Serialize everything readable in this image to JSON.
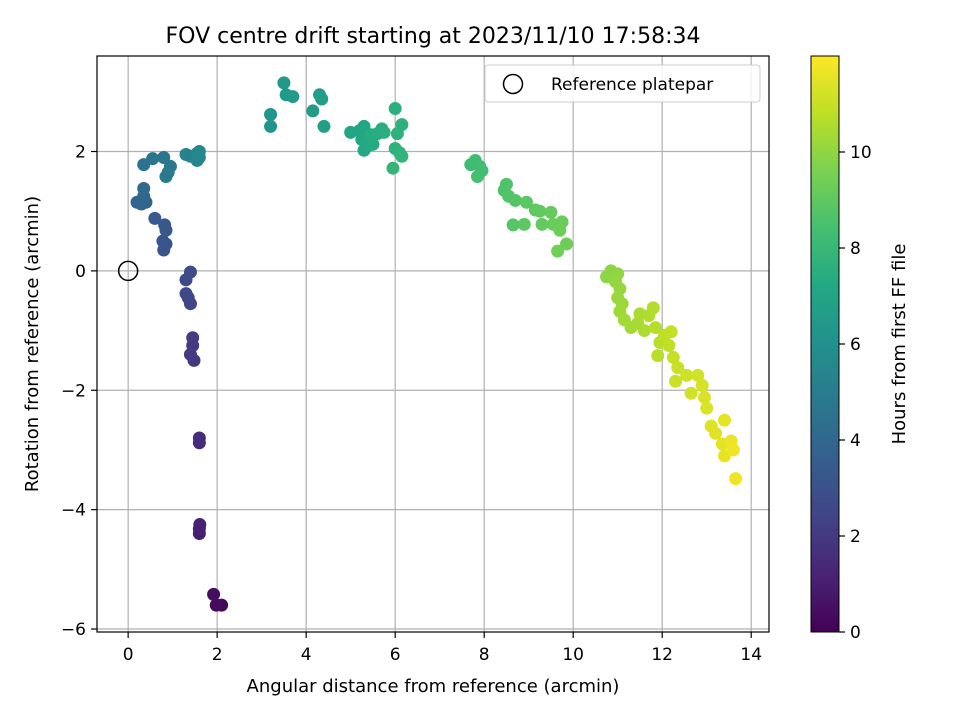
{
  "chart_data": {
    "type": "scatter",
    "title": "FOV centre drift starting at 2023/11/10 17:58:34",
    "xlabel": "Angular distance from reference (arcmin)",
    "ylabel": "Rotation from reference (arcmin)",
    "colorbar_label": "Hours from first FF file",
    "xlim": [
      -0.7,
      14.4
    ],
    "ylim": [
      -6.05,
      3.6
    ],
    "xticks": [
      0,
      2,
      4,
      6,
      8,
      10,
      12,
      14
    ],
    "yticks": [
      -6,
      -4,
      -2,
      0,
      2
    ],
    "colorbar_ticks": [
      0,
      2,
      4,
      6,
      8,
      10
    ],
    "colorbar_range": [
      0,
      12
    ],
    "colormap": "viridis",
    "grid": true,
    "legend": {
      "location": "top-right",
      "entries": [
        "Reference platepar"
      ]
    },
    "reference_point": {
      "x": 0,
      "y": 0
    },
    "points": [
      {
        "x": 2.1,
        "y": -5.6,
        "t": 0.2
      },
      {
        "x": 1.98,
        "y": -5.6,
        "t": 0.3
      },
      {
        "x": 1.92,
        "y": -5.42,
        "t": 0.45
      },
      {
        "x": 1.6,
        "y": -4.4,
        "t": 1.0
      },
      {
        "x": 1.6,
        "y": -4.32,
        "t": 1.05
      },
      {
        "x": 1.61,
        "y": -4.25,
        "t": 1.1
      },
      {
        "x": 1.6,
        "y": -2.88,
        "t": 1.5
      },
      {
        "x": 1.6,
        "y": -2.8,
        "t": 1.55
      },
      {
        "x": 1.48,
        "y": -1.5,
        "t": 2.0
      },
      {
        "x": 1.4,
        "y": -1.4,
        "t": 2.05
      },
      {
        "x": 1.45,
        "y": -1.25,
        "t": 2.1
      },
      {
        "x": 1.45,
        "y": -1.12,
        "t": 2.15
      },
      {
        "x": 1.4,
        "y": -0.55,
        "t": 2.5
      },
      {
        "x": 1.35,
        "y": -0.45,
        "t": 2.55
      },
      {
        "x": 1.3,
        "y": -0.38,
        "t": 2.6
      },
      {
        "x": 1.3,
        "y": -0.15,
        "t": 2.7
      },
      {
        "x": 1.4,
        "y": -0.02,
        "t": 2.75
      },
      {
        "x": 0.8,
        "y": 0.35,
        "t": 3.0
      },
      {
        "x": 0.85,
        "y": 0.45,
        "t": 3.1
      },
      {
        "x": 0.78,
        "y": 0.5,
        "t": 3.15
      },
      {
        "x": 0.85,
        "y": 0.68,
        "t": 3.25
      },
      {
        "x": 0.82,
        "y": 0.77,
        "t": 3.3
      },
      {
        "x": 0.6,
        "y": 0.88,
        "t": 3.4
      },
      {
        "x": 0.4,
        "y": 1.15,
        "t": 3.8
      },
      {
        "x": 0.3,
        "y": 1.12,
        "t": 3.85
      },
      {
        "x": 0.2,
        "y": 1.15,
        "t": 3.9
      },
      {
        "x": 0.35,
        "y": 1.25,
        "t": 4.0
      },
      {
        "x": 0.35,
        "y": 1.38,
        "t": 4.1
      },
      {
        "x": 0.35,
        "y": 1.78,
        "t": 4.5
      },
      {
        "x": 0.55,
        "y": 1.88,
        "t": 4.6
      },
      {
        "x": 0.8,
        "y": 1.9,
        "t": 4.7
      },
      {
        "x": 0.95,
        "y": 1.75,
        "t": 4.8
      },
      {
        "x": 0.9,
        "y": 1.65,
        "t": 4.85
      },
      {
        "x": 0.85,
        "y": 1.58,
        "t": 4.9
      },
      {
        "x": 1.3,
        "y": 1.95,
        "t": 5.3
      },
      {
        "x": 1.4,
        "y": 1.92,
        "t": 5.35
      },
      {
        "x": 1.55,
        "y": 1.97,
        "t": 5.4
      },
      {
        "x": 1.6,
        "y": 1.9,
        "t": 5.45
      },
      {
        "x": 1.55,
        "y": 1.85,
        "t": 5.5
      },
      {
        "x": 1.6,
        "y": 2.0,
        "t": 5.55
      },
      {
        "x": 3.2,
        "y": 2.42,
        "t": 6.2
      },
      {
        "x": 3.2,
        "y": 2.62,
        "t": 6.25
      },
      {
        "x": 3.5,
        "y": 3.15,
        "t": 6.35
      },
      {
        "x": 3.55,
        "y": 2.95,
        "t": 6.4
      },
      {
        "x": 3.7,
        "y": 2.92,
        "t": 6.45
      },
      {
        "x": 4.15,
        "y": 2.68,
        "t": 6.6
      },
      {
        "x": 4.3,
        "y": 2.95,
        "t": 6.65
      },
      {
        "x": 4.35,
        "y": 2.88,
        "t": 6.7
      },
      {
        "x": 4.4,
        "y": 2.42,
        "t": 6.75
      },
      {
        "x": 5.0,
        "y": 2.32,
        "t": 7.0
      },
      {
        "x": 5.2,
        "y": 2.35,
        "t": 7.05
      },
      {
        "x": 5.3,
        "y": 2.42,
        "t": 7.1
      },
      {
        "x": 5.25,
        "y": 2.2,
        "t": 7.15
      },
      {
        "x": 5.3,
        "y": 2.02,
        "t": 7.2
      },
      {
        "x": 5.4,
        "y": 2.1,
        "t": 7.25
      },
      {
        "x": 5.5,
        "y": 2.12,
        "t": 7.3
      },
      {
        "x": 5.45,
        "y": 2.28,
        "t": 7.35
      },
      {
        "x": 5.6,
        "y": 2.3,
        "t": 7.4
      },
      {
        "x": 5.7,
        "y": 2.38,
        "t": 7.45
      },
      {
        "x": 5.75,
        "y": 2.32,
        "t": 7.5
      },
      {
        "x": 6.0,
        "y": 2.72,
        "t": 7.55
      },
      {
        "x": 6.15,
        "y": 2.45,
        "t": 7.6
      },
      {
        "x": 6.05,
        "y": 2.3,
        "t": 7.65
      },
      {
        "x": 6.0,
        "y": 2.05,
        "t": 7.7
      },
      {
        "x": 6.1,
        "y": 1.98,
        "t": 7.75
      },
      {
        "x": 6.15,
        "y": 1.92,
        "t": 7.8
      },
      {
        "x": 5.95,
        "y": 1.72,
        "t": 7.85
      },
      {
        "x": 7.7,
        "y": 1.78,
        "t": 8.2
      },
      {
        "x": 7.8,
        "y": 1.85,
        "t": 8.25
      },
      {
        "x": 7.9,
        "y": 1.75,
        "t": 8.3
      },
      {
        "x": 7.95,
        "y": 1.68,
        "t": 8.35
      },
      {
        "x": 7.85,
        "y": 1.58,
        "t": 8.4
      },
      {
        "x": 8.45,
        "y": 1.35,
        "t": 8.6
      },
      {
        "x": 8.5,
        "y": 1.45,
        "t": 8.65
      },
      {
        "x": 8.55,
        "y": 1.25,
        "t": 8.7
      },
      {
        "x": 8.7,
        "y": 1.18,
        "t": 8.75
      },
      {
        "x": 8.65,
        "y": 0.77,
        "t": 8.8
      },
      {
        "x": 8.95,
        "y": 1.15,
        "t": 8.9
      },
      {
        "x": 8.9,
        "y": 0.78,
        "t": 8.95
      },
      {
        "x": 9.15,
        "y": 1.02,
        "t": 9.0
      },
      {
        "x": 9.25,
        "y": 1.0,
        "t": 9.05
      },
      {
        "x": 9.3,
        "y": 0.78,
        "t": 9.1
      },
      {
        "x": 9.5,
        "y": 0.98,
        "t": 9.15
      },
      {
        "x": 9.55,
        "y": 0.78,
        "t": 9.2
      },
      {
        "x": 9.75,
        "y": 0.82,
        "t": 9.25
      },
      {
        "x": 9.7,
        "y": 0.68,
        "t": 9.3
      },
      {
        "x": 9.85,
        "y": 0.45,
        "t": 9.35
      },
      {
        "x": 9.65,
        "y": 0.33,
        "t": 9.4
      },
      {
        "x": 10.75,
        "y": -0.1,
        "t": 9.9
      },
      {
        "x": 10.85,
        "y": 0.0,
        "t": 9.95
      },
      {
        "x": 11.0,
        "y": -0.05,
        "t": 10.0
      },
      {
        "x": 10.95,
        "y": -0.18,
        "t": 10.05
      },
      {
        "x": 11.05,
        "y": -0.3,
        "t": 10.1
      },
      {
        "x": 11.0,
        "y": -0.45,
        "t": 10.15
      },
      {
        "x": 11.1,
        "y": -0.55,
        "t": 10.2
      },
      {
        "x": 11.05,
        "y": -0.68,
        "t": 10.25
      },
      {
        "x": 11.15,
        "y": -0.82,
        "t": 10.3
      },
      {
        "x": 11.3,
        "y": -0.95,
        "t": 10.35
      },
      {
        "x": 11.45,
        "y": -0.88,
        "t": 10.4
      },
      {
        "x": 11.5,
        "y": -0.72,
        "t": 10.45
      },
      {
        "x": 11.6,
        "y": -1.0,
        "t": 10.5
      },
      {
        "x": 11.7,
        "y": -0.75,
        "t": 10.55
      },
      {
        "x": 11.8,
        "y": -0.62,
        "t": 10.6
      },
      {
        "x": 11.85,
        "y": -0.95,
        "t": 10.65
      },
      {
        "x": 11.95,
        "y": -1.2,
        "t": 10.7
      },
      {
        "x": 11.9,
        "y": -1.42,
        "t": 10.75
      },
      {
        "x": 12.05,
        "y": -1.08,
        "t": 10.8
      },
      {
        "x": 12.15,
        "y": -1.25,
        "t": 10.85
      },
      {
        "x": 12.2,
        "y": -1.02,
        "t": 10.9
      },
      {
        "x": 12.25,
        "y": -1.45,
        "t": 10.95
      },
      {
        "x": 12.35,
        "y": -1.62,
        "t": 11.0
      },
      {
        "x": 12.3,
        "y": -1.85,
        "t": 11.05
      },
      {
        "x": 12.55,
        "y": -1.75,
        "t": 11.1
      },
      {
        "x": 12.65,
        "y": -2.05,
        "t": 11.15
      },
      {
        "x": 12.8,
        "y": -1.75,
        "t": 11.2
      },
      {
        "x": 12.9,
        "y": -1.92,
        "t": 11.25
      },
      {
        "x": 12.95,
        "y": -2.12,
        "t": 11.3
      },
      {
        "x": 13.0,
        "y": -2.3,
        "t": 11.35
      },
      {
        "x": 13.1,
        "y": -2.6,
        "t": 11.4
      },
      {
        "x": 13.2,
        "y": -2.72,
        "t": 11.45
      },
      {
        "x": 13.35,
        "y": -2.9,
        "t": 11.5
      },
      {
        "x": 13.4,
        "y": -2.5,
        "t": 11.55
      },
      {
        "x": 13.4,
        "y": -3.1,
        "t": 11.6
      },
      {
        "x": 13.55,
        "y": -2.85,
        "t": 11.65
      },
      {
        "x": 13.6,
        "y": -3.0,
        "t": 11.7
      },
      {
        "x": 13.65,
        "y": -3.48,
        "t": 11.75
      }
    ]
  }
}
